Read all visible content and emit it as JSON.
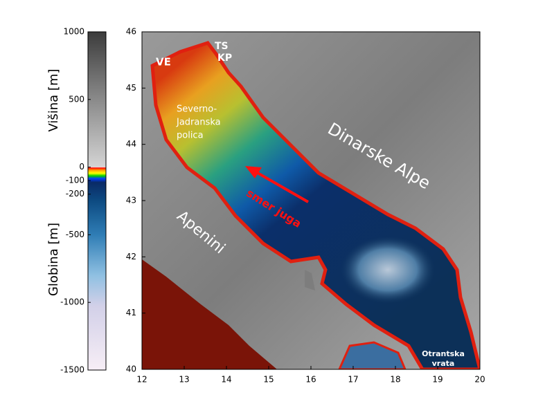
{
  "colorbar": {
    "label_top": "Višina [m]",
    "label_bottom": "Globina [m]",
    "lim": [
      -1500,
      1000
    ],
    "ticks": [
      1000,
      500,
      0,
      -100,
      -200,
      -500,
      -1000,
      -1500
    ]
  },
  "map": {
    "xlim": [
      12,
      20
    ],
    "ylim": [
      40,
      46
    ],
    "xticks": [
      12,
      13,
      14,
      15,
      16,
      17,
      18,
      19,
      20
    ],
    "yticks": [
      40,
      41,
      42,
      43,
      44,
      45,
      46
    ]
  },
  "annotations": [
    [
      "VE"
    ],
    [
      "TS"
    ],
    [
      "KP"
    ],
    [
      "Severno-",
      "Jadranska",
      "polica"
    ],
    [
      "Dinarske Alpe"
    ],
    [
      "Apenini"
    ],
    [
      "smer juga"
    ],
    [
      "Otrantska",
      "vrata"
    ]
  ]
}
